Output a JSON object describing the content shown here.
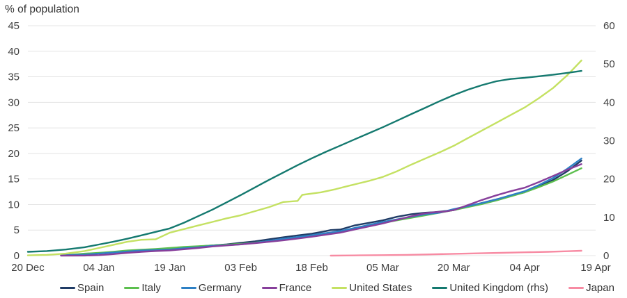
{
  "chart_data": {
    "type": "line",
    "title": "% of population",
    "x_tick_labels": [
      "20 Dec",
      "04 Jan",
      "19 Jan",
      "03 Feb",
      "18 Feb",
      "05 Mar",
      "20 Mar",
      "04 Apr",
      "19 Apr"
    ],
    "x_tick_days": [
      0,
      15,
      30,
      45,
      60,
      75,
      90,
      105,
      120
    ],
    "x_range_days": [
      0,
      120
    ],
    "y_left_axis": {
      "ticks": [
        0,
        5,
        10,
        15,
        20,
        25,
        30,
        35,
        40,
        45
      ],
      "range": [
        0,
        45
      ]
    },
    "y_right_axis": {
      "ticks": [
        0,
        10,
        20,
        30,
        40,
        50,
        60
      ],
      "range": [
        0,
        60
      ]
    },
    "grid": "horizontal",
    "legend_position": "bottom",
    "gridline_color": "#e4e4e4",
    "axis_text_color": "#404040",
    "series": [
      {
        "name": "Spain",
        "color": "#203c66",
        "axis": "left",
        "points": [
          [
            8,
            0.05
          ],
          [
            12,
            0.25
          ],
          [
            15,
            0.45
          ],
          [
            18,
            0.65
          ],
          [
            21,
            0.9
          ],
          [
            24,
            1.1
          ],
          [
            27,
            1.25
          ],
          [
            30,
            1.4
          ],
          [
            33,
            1.6
          ],
          [
            36,
            1.8
          ],
          [
            39,
            2.0
          ],
          [
            42,
            2.2
          ],
          [
            45,
            2.5
          ],
          [
            48,
            2.8
          ],
          [
            51,
            3.2
          ],
          [
            54,
            3.6
          ],
          [
            57,
            3.95
          ],
          [
            60,
            4.3
          ],
          [
            63,
            4.8
          ],
          [
            64,
            5.0
          ],
          [
            66,
            5.1
          ],
          [
            69,
            5.9
          ],
          [
            72,
            6.4
          ],
          [
            75,
            6.9
          ],
          [
            78,
            7.6
          ],
          [
            81,
            8.1
          ],
          [
            84,
            8.4
          ],
          [
            86,
            8.5
          ],
          [
            88,
            8.7
          ],
          [
            90,
            8.9
          ],
          [
            93,
            9.6
          ],
          [
            96,
            10.3
          ],
          [
            99,
            11.0
          ],
          [
            102,
            11.7
          ],
          [
            105,
            12.4
          ],
          [
            108,
            13.5
          ],
          [
            111,
            14.8
          ],
          [
            114,
            16.5
          ],
          [
            117,
            18.6
          ]
        ]
      },
      {
        "name": "Italy",
        "color": "#5cbf4e",
        "axis": "left",
        "points": [
          [
            7,
            0.05
          ],
          [
            10,
            0.25
          ],
          [
            12,
            0.4
          ],
          [
            15,
            0.55
          ],
          [
            18,
            0.75
          ],
          [
            21,
            1.0
          ],
          [
            24,
            1.15
          ],
          [
            27,
            1.3
          ],
          [
            30,
            1.5
          ],
          [
            33,
            1.7
          ],
          [
            36,
            1.85
          ],
          [
            39,
            2.0
          ],
          [
            42,
            2.15
          ],
          [
            45,
            2.3
          ],
          [
            48,
            2.55
          ],
          [
            51,
            2.85
          ],
          [
            54,
            3.2
          ],
          [
            57,
            3.55
          ],
          [
            60,
            3.9
          ],
          [
            63,
            4.3
          ],
          [
            66,
            4.7
          ],
          [
            69,
            5.3
          ],
          [
            72,
            5.85
          ],
          [
            75,
            6.4
          ],
          [
            78,
            6.9
          ],
          [
            81,
            7.4
          ],
          [
            84,
            7.9
          ],
          [
            87,
            8.4
          ],
          [
            90,
            8.9
          ],
          [
            93,
            9.5
          ],
          [
            96,
            10.1
          ],
          [
            99,
            10.8
          ],
          [
            102,
            11.6
          ],
          [
            105,
            12.4
          ],
          [
            108,
            13.4
          ],
          [
            111,
            14.5
          ],
          [
            114,
            15.8
          ],
          [
            117,
            17.1
          ]
        ]
      },
      {
        "name": "Germany",
        "color": "#2d80c4",
        "axis": "left",
        "points": [
          [
            7,
            0.05
          ],
          [
            12,
            0.2
          ],
          [
            15,
            0.4
          ],
          [
            18,
            0.6
          ],
          [
            21,
            0.8
          ],
          [
            24,
            1.0
          ],
          [
            27,
            1.1
          ],
          [
            30,
            1.2
          ],
          [
            33,
            1.45
          ],
          [
            36,
            1.65
          ],
          [
            39,
            1.9
          ],
          [
            42,
            2.05
          ],
          [
            45,
            2.2
          ],
          [
            48,
            2.5
          ],
          [
            51,
            2.9
          ],
          [
            54,
            3.3
          ],
          [
            57,
            3.65
          ],
          [
            60,
            4.0
          ],
          [
            63,
            4.4
          ],
          [
            66,
            4.8
          ],
          [
            69,
            5.4
          ],
          [
            72,
            6.0
          ],
          [
            75,
            6.6
          ],
          [
            78,
            7.1
          ],
          [
            81,
            7.6
          ],
          [
            84,
            8.1
          ],
          [
            87,
            8.4
          ],
          [
            90,
            9.1
          ],
          [
            93,
            9.7
          ],
          [
            96,
            10.3
          ],
          [
            99,
            11.0
          ],
          [
            102,
            11.8
          ],
          [
            105,
            12.6
          ],
          [
            108,
            13.8
          ],
          [
            111,
            15.2
          ],
          [
            114,
            17.0
          ],
          [
            117,
            19.0
          ]
        ]
      },
      {
        "name": "France",
        "color": "#873f9b",
        "axis": "left",
        "points": [
          [
            7,
            0.0
          ],
          [
            12,
            0.02
          ],
          [
            15,
            0.1
          ],
          [
            18,
            0.3
          ],
          [
            21,
            0.55
          ],
          [
            24,
            0.75
          ],
          [
            27,
            0.9
          ],
          [
            30,
            1.0
          ],
          [
            33,
            1.25
          ],
          [
            36,
            1.5
          ],
          [
            39,
            1.8
          ],
          [
            42,
            2.0
          ],
          [
            45,
            2.2
          ],
          [
            48,
            2.45
          ],
          [
            51,
            2.7
          ],
          [
            54,
            3.0
          ],
          [
            57,
            3.35
          ],
          [
            60,
            3.7
          ],
          [
            63,
            4.1
          ],
          [
            66,
            4.5
          ],
          [
            69,
            5.1
          ],
          [
            72,
            5.7
          ],
          [
            75,
            6.3
          ],
          [
            78,
            7.0
          ],
          [
            81,
            7.7
          ],
          [
            84,
            8.3
          ],
          [
            86,
            8.5
          ],
          [
            88,
            8.6
          ],
          [
            90,
            8.9
          ],
          [
            93,
            9.9
          ],
          [
            96,
            10.9
          ],
          [
            99,
            11.8
          ],
          [
            102,
            12.6
          ],
          [
            105,
            13.3
          ],
          [
            108,
            14.4
          ],
          [
            111,
            15.6
          ],
          [
            114,
            16.8
          ],
          [
            117,
            17.9
          ]
        ]
      },
      {
        "name": "United States",
        "color": "#c4e162",
        "axis": "left",
        "points": [
          [
            0,
            0.05
          ],
          [
            4,
            0.15
          ],
          [
            8,
            0.4
          ],
          [
            12,
            0.9
          ],
          [
            15,
            1.5
          ],
          [
            18,
            2.1
          ],
          [
            21,
            2.7
          ],
          [
            24,
            3.1
          ],
          [
            27,
            3.2
          ],
          [
            30,
            4.5
          ],
          [
            33,
            5.2
          ],
          [
            36,
            5.9
          ],
          [
            39,
            6.6
          ],
          [
            42,
            7.3
          ],
          [
            45,
            7.9
          ],
          [
            48,
            8.7
          ],
          [
            51,
            9.5
          ],
          [
            54,
            10.5
          ],
          [
            57,
            10.7
          ],
          [
            58,
            11.9
          ],
          [
            62,
            12.4
          ],
          [
            65,
            13.0
          ],
          [
            68,
            13.7
          ],
          [
            72,
            14.6
          ],
          [
            75,
            15.4
          ],
          [
            78,
            16.5
          ],
          [
            81,
            17.8
          ],
          [
            84,
            19.0
          ],
          [
            87,
            20.2
          ],
          [
            90,
            21.5
          ],
          [
            93,
            23.0
          ],
          [
            96,
            24.5
          ],
          [
            99,
            26.0
          ],
          [
            102,
            27.5
          ],
          [
            105,
            29.0
          ],
          [
            108,
            30.8
          ],
          [
            111,
            32.8
          ],
          [
            114,
            35.3
          ],
          [
            117,
            38.2
          ]
        ]
      },
      {
        "name": "United Kingdom (rhs)",
        "color": "#14796f",
        "axis": "right",
        "points": [
          [
            0,
            1.0
          ],
          [
            4,
            1.2
          ],
          [
            8,
            1.6
          ],
          [
            12,
            2.2
          ],
          [
            15,
            2.9
          ],
          [
            18,
            3.6
          ],
          [
            21,
            4.4
          ],
          [
            24,
            5.3
          ],
          [
            27,
            6.2
          ],
          [
            30,
            7.1
          ],
          [
            33,
            8.6
          ],
          [
            36,
            10.3
          ],
          [
            39,
            12.0
          ],
          [
            42,
            13.9
          ],
          [
            45,
            15.8
          ],
          [
            48,
            17.8
          ],
          [
            51,
            19.8
          ],
          [
            54,
            21.7
          ],
          [
            57,
            23.6
          ],
          [
            60,
            25.4
          ],
          [
            63,
            27.1
          ],
          [
            66,
            28.7
          ],
          [
            69,
            30.3
          ],
          [
            72,
            31.9
          ],
          [
            75,
            33.5
          ],
          [
            78,
            35.2
          ],
          [
            81,
            36.9
          ],
          [
            84,
            38.6
          ],
          [
            87,
            40.3
          ],
          [
            90,
            41.9
          ],
          [
            93,
            43.3
          ],
          [
            96,
            44.5
          ],
          [
            99,
            45.5
          ],
          [
            102,
            46.1
          ],
          [
            105,
            46.4
          ],
          [
            108,
            46.8
          ],
          [
            111,
            47.2
          ],
          [
            114,
            47.7
          ],
          [
            117,
            48.2
          ]
        ]
      },
      {
        "name": "Japan",
        "color": "#f78ba3",
        "axis": "left",
        "points": [
          [
            64,
            0.0
          ],
          [
            70,
            0.05
          ],
          [
            75,
            0.1
          ],
          [
            80,
            0.15
          ],
          [
            85,
            0.25
          ],
          [
            90,
            0.35
          ],
          [
            95,
            0.45
          ],
          [
            100,
            0.55
          ],
          [
            105,
            0.65
          ],
          [
            110,
            0.75
          ],
          [
            114,
            0.85
          ],
          [
            117,
            0.95
          ]
        ]
      }
    ]
  }
}
